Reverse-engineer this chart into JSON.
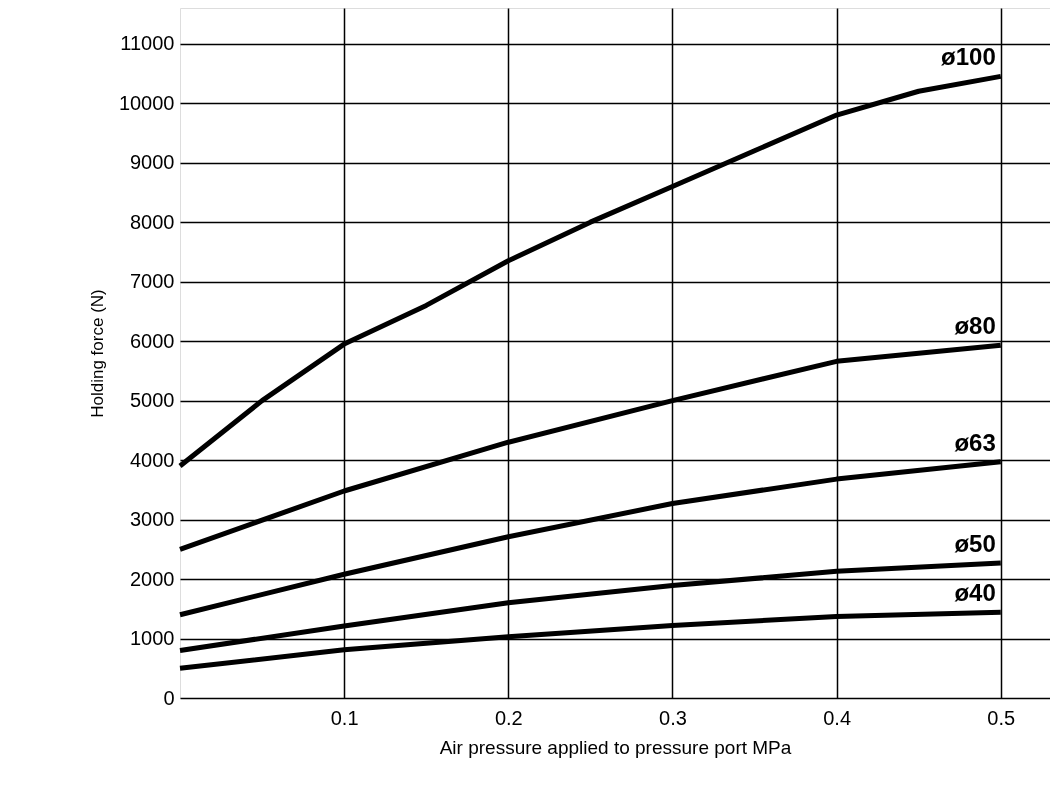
{
  "chart_data": {
    "type": "line",
    "xlabel": "Air pressure applied to pressure port MPa",
    "ylabel": "Holding force (N)",
    "x": [
      0,
      0.05,
      0.1,
      0.15,
      0.2,
      0.25,
      0.3,
      0.35,
      0.4,
      0.45,
      0.5
    ],
    "series": [
      {
        "name": "ø100",
        "color": "#000000",
        "values": [
          3900,
          5000,
          5950,
          6600,
          7350,
          8000,
          8600,
          9200,
          9800,
          10200,
          10450
        ]
      },
      {
        "name": "ø80",
        "color": "#000000",
        "x": [
          0,
          0.1,
          0.2,
          0.3,
          0.4,
          0.5
        ],
        "values": [
          2500,
          3480,
          4300,
          5000,
          5660,
          5930
        ]
      },
      {
        "name": "ø63",
        "color": "#000000",
        "x": [
          0,
          0.1,
          0.2,
          0.3,
          0.4,
          0.5
        ],
        "values": [
          1400,
          2080,
          2710,
          3270,
          3680,
          3970
        ]
      },
      {
        "name": "ø50",
        "color": "#000000",
        "x": [
          0,
          0.1,
          0.2,
          0.3,
          0.4,
          0.5
        ],
        "values": [
          800,
          1210,
          1600,
          1890,
          2130,
          2270
        ]
      },
      {
        "name": "ø40",
        "color": "#000000",
        "x": [
          0,
          0.1,
          0.2,
          0.3,
          0.4,
          0.5
        ],
        "values": [
          500,
          810,
          1030,
          1220,
          1370,
          1440
        ]
      }
    ],
    "xlim": [
      0,
      0.53
    ],
    "xticks": [
      0.1,
      0.2,
      0.3,
      0.4,
      0.5
    ],
    "ylim": [
      0,
      11600
    ],
    "yticks": [
      0,
      1000,
      2000,
      3000,
      4000,
      5000,
      6000,
      7000,
      8000,
      9000,
      10000,
      11000
    ],
    "grid": true,
    "marker": "none",
    "line_style": "solid"
  }
}
